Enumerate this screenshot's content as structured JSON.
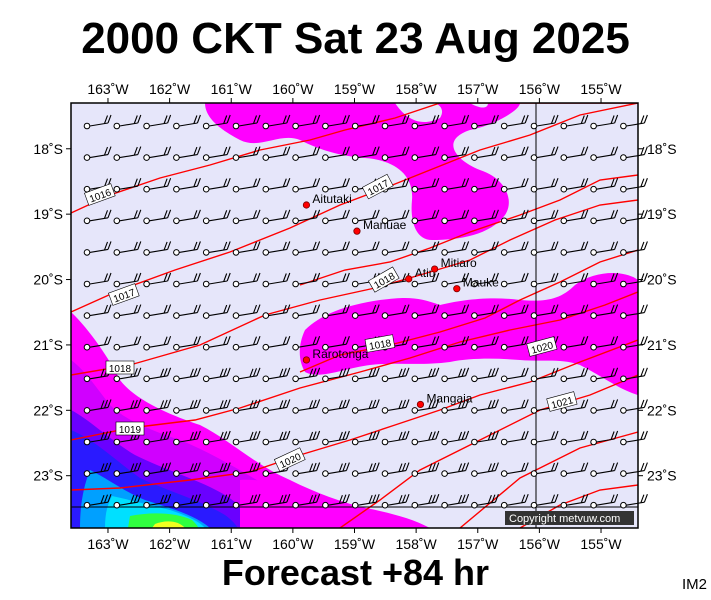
{
  "header": {
    "title": "2000 CKT Sat 23 Aug 2025"
  },
  "footer": {
    "forecast": "Forecast +84 hr",
    "tag": "IM2"
  },
  "map": {
    "lon_range": [
      -163.6,
      -154.4
    ],
    "lat_range": [
      -23.8,
      -17.3
    ],
    "lon_ticks": [
      {
        "lon": -163,
        "label": "163˚W"
      },
      {
        "lon": -162,
        "label": "162˚W"
      },
      {
        "lon": -161,
        "label": "161˚W"
      },
      {
        "lon": -160,
        "label": "160˚W"
      },
      {
        "lon": -159,
        "label": "159˚W"
      },
      {
        "lon": -158,
        "label": "158˚W"
      },
      {
        "lon": -157,
        "label": "157˚W"
      },
      {
        "lon": -156,
        "label": "156˚W"
      },
      {
        "lon": -155,
        "label": "155˚W"
      }
    ],
    "lat_ticks": [
      {
        "lat": -18,
        "label": "18˚S"
      },
      {
        "lat": -19,
        "label": "19˚S"
      },
      {
        "lat": -20,
        "label": "20˚S"
      },
      {
        "lat": -21,
        "label": "21˚S"
      },
      {
        "lat": -22,
        "label": "22˚S"
      },
      {
        "lat": -23,
        "label": "23˚S"
      }
    ],
    "places": [
      {
        "name": "Aitutaki",
        "lon": -159.78,
        "lat": -18.86
      },
      {
        "name": "Manuae",
        "lon": -158.96,
        "lat": -19.26
      },
      {
        "name": "Atiu",
        "lon": -158.12,
        "lat": -19.99
      },
      {
        "name": "Mitiaro",
        "lon": -157.7,
        "lat": -19.84
      },
      {
        "name": "Mauke",
        "lon": -157.34,
        "lat": -20.14
      },
      {
        "name": "Rarotonga",
        "lon": -159.78,
        "lat": -21.23
      },
      {
        "name": "Mangaia",
        "lon": -157.93,
        "lat": -21.91
      }
    ],
    "isobar_labels": [
      "1016",
      "1017",
      "1017",
      "1018",
      "1018",
      "1018",
      "1019",
      "1020",
      "1020",
      "1021"
    ],
    "copyright": "Copyright metvuw.com",
    "colors": {
      "background": "#e6e6fa",
      "rain_light": "#ff00ff",
      "rain_med": "#d000ff",
      "rain_heavy": "#2a1aff",
      "rain_very_heavy": "#00e0ff",
      "rain_extreme": "#30ff40",
      "isobar": "#ff0000",
      "place_dot": "#ff0000"
    }
  }
}
